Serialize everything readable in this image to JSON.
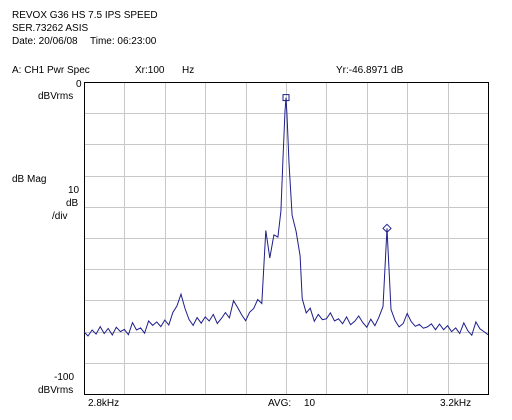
{
  "header": {
    "line1": "REVOX G36 HS 7.5 IPS SPEED",
    "line2": "SER.73262 ASIS",
    "date_label": "Date: 20/06/08",
    "time_label": "Time: 06:23:00"
  },
  "marker_bar": {
    "trace_label": "A:  CH1 Pwr Spec",
    "xr_label": "Xr:100",
    "x_unit": "Hz",
    "yr_label": "Yr:-46.8971 dB"
  },
  "y_axis": {
    "top_value": "0",
    "top_unit": "dBVrms",
    "mag_label": "dB Mag",
    "scale_value": "10",
    "scale_unit": "dB",
    "scale_per": "/div",
    "bottom_value": "-100",
    "bottom_unit": "dBVrms"
  },
  "x_axis": {
    "start_label": "2.8kHz",
    "avg_label": "AVG:",
    "avg_value": "10",
    "stop_label": "3.2kHz"
  },
  "colors": {
    "trace": "#1e1e8c",
    "grid": "#c8c8c8",
    "frame": "#000000",
    "marker": "#1e1e8c"
  },
  "chart_data": {
    "type": "line",
    "title": "CH1 Pwr Spec",
    "xlabel": "",
    "ylabel": "dB Mag",
    "xlim": [
      2800,
      3200
    ],
    "ylim": [
      -100,
      0
    ],
    "x_unit": "Hz",
    "y_unit": "dBVrms",
    "scale": "10 dB/div",
    "grid": true,
    "markers": [
      {
        "name": "reference",
        "shape": "square",
        "x": 3000,
        "y": -5
      },
      {
        "name": "offset",
        "shape": "diamond",
        "x": 3100,
        "y": -46.9
      }
    ],
    "series": [
      {
        "values": [
          [
            2800.0,
            -80.1
          ],
          [
            2804.0,
            -81.4
          ],
          [
            2808.0,
            -79.5
          ],
          [
            2812.0,
            -80.8
          ],
          [
            2816.0,
            -78.4
          ],
          [
            2820.0,
            -80.6
          ],
          [
            2824.0,
            -79.0
          ],
          [
            2828.0,
            -81.1
          ],
          [
            2832.0,
            -78.6
          ],
          [
            2836.0,
            -80.0
          ],
          [
            2840.0,
            -79.3
          ],
          [
            2844.0,
            -81.0
          ],
          [
            2848.0,
            -77.1
          ],
          [
            2852.0,
            -79.5
          ],
          [
            2856.0,
            -78.8
          ],
          [
            2860.0,
            -80.5
          ],
          [
            2864.0,
            -76.6
          ],
          [
            2868.0,
            -78.0
          ],
          [
            2872.0,
            -76.9
          ],
          [
            2876.0,
            -78.4
          ],
          [
            2880.0,
            -76.3
          ],
          [
            2884.0,
            -77.9
          ],
          [
            2888.0,
            -73.8
          ],
          [
            2892.0,
            -71.8
          ],
          [
            2896.0,
            -68.0
          ],
          [
            2900.0,
            -72.6
          ],
          [
            2904.0,
            -76.1
          ],
          [
            2908.0,
            -78.0
          ],
          [
            2912.0,
            -75.5
          ],
          [
            2916.0,
            -77.3
          ],
          [
            2920.0,
            -75.3
          ],
          [
            2924.0,
            -76.6
          ],
          [
            2928.0,
            -74.5
          ],
          [
            2932.0,
            -77.4
          ],
          [
            2936.0,
            -75.8
          ],
          [
            2940.0,
            -73.9
          ],
          [
            2944.0,
            -75.6
          ],
          [
            2948.0,
            -70.1
          ],
          [
            2952.0,
            -72.2
          ],
          [
            2956.0,
            -74.6
          ],
          [
            2960.0,
            -76.5
          ],
          [
            2964.0,
            -73.8
          ],
          [
            2968.0,
            -72.6
          ],
          [
            2972.0,
            -69.7
          ],
          [
            2976.0,
            -71.0
          ],
          [
            2980.0,
            -47.6
          ],
          [
            2984.0,
            -56.4
          ],
          [
            2988.0,
            -49.0
          ],
          [
            2992.0,
            -49.7
          ],
          [
            2995.0,
            -41.4
          ],
          [
            2997.0,
            -24.4
          ],
          [
            2999.0,
            -9.4
          ],
          [
            3000.0,
            -5.0
          ],
          [
            3001.0,
            -10.6
          ],
          [
            3003.0,
            -25.9
          ],
          [
            3006.0,
            -42.7
          ],
          [
            3010.0,
            -47.9
          ],
          [
            3014.0,
            -55.7
          ],
          [
            3016.0,
            -69.4
          ],
          [
            3020.0,
            -74.0
          ],
          [
            3024.0,
            -72.5
          ],
          [
            3028.0,
            -76.7
          ],
          [
            3032.0,
            -74.5
          ],
          [
            3036.0,
            -76.2
          ],
          [
            3040.0,
            -75.9
          ],
          [
            3044.0,
            -74.0
          ],
          [
            3048.0,
            -76.6
          ],
          [
            3052.0,
            -75.9
          ],
          [
            3056.0,
            -77.5
          ],
          [
            3060.0,
            -75.3
          ],
          [
            3064.0,
            -77.8
          ],
          [
            3068.0,
            -76.7
          ],
          [
            3072.0,
            -75.0
          ],
          [
            3076.0,
            -77.1
          ],
          [
            3080.0,
            -78.6
          ],
          [
            3084.0,
            -76.0
          ],
          [
            3088.0,
            -78.1
          ],
          [
            3092.0,
            -75.4
          ],
          [
            3096.0,
            -72.0
          ],
          [
            3100.0,
            -46.9
          ],
          [
            3104.0,
            -72.9
          ],
          [
            3108.0,
            -76.5
          ],
          [
            3112.0,
            -78.5
          ],
          [
            3116.0,
            -77.4
          ],
          [
            3120.0,
            -74.2
          ],
          [
            3124.0,
            -76.8
          ],
          [
            3128.0,
            -78.3
          ],
          [
            3132.0,
            -77.7
          ],
          [
            3136.0,
            -78.9
          ],
          [
            3140.0,
            -78.5
          ],
          [
            3144.0,
            -77.5
          ],
          [
            3148.0,
            -79.4
          ],
          [
            3152.0,
            -77.6
          ],
          [
            3156.0,
            -79.4
          ],
          [
            3160.0,
            -78.1
          ],
          [
            3164.0,
            -80.0
          ],
          [
            3168.0,
            -78.8
          ],
          [
            3172.0,
            -80.6
          ],
          [
            3176.0,
            -77.2
          ],
          [
            3180.0,
            -79.7
          ],
          [
            3184.0,
            -81.2
          ],
          [
            3188.0,
            -76.9
          ],
          [
            3192.0,
            -79.1
          ],
          [
            3196.0,
            -80.0
          ],
          [
            3200.0,
            -81.0
          ]
        ]
      }
    ]
  }
}
